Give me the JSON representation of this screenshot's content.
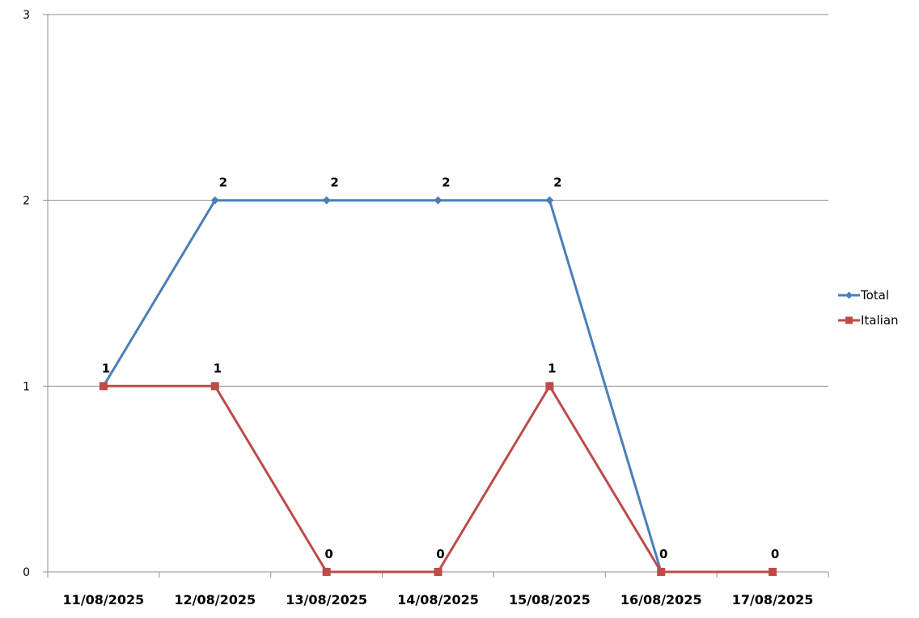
{
  "chart_data": {
    "type": "line",
    "categories": [
      "11/08/2025",
      "12/08/2025",
      "13/08/2025",
      "14/08/2025",
      "15/08/2025",
      "16/08/2025",
      "17/08/2025"
    ],
    "series": [
      {
        "name": "Total",
        "color": "#4a7ebb",
        "marker": "diamond",
        "values": [
          1,
          2,
          2,
          2,
          2,
          0,
          null
        ],
        "labels": [
          null,
          "2",
          "2",
          "2",
          "2",
          null,
          null
        ]
      },
      {
        "name": "Italian",
        "color": "#be4b48",
        "marker": "square",
        "values": [
          1,
          1,
          0,
          0,
          1,
          0,
          0
        ],
        "labels": [
          "1",
          "1",
          "0",
          "0",
          "1",
          "0",
          "0"
        ]
      }
    ],
    "ylim": [
      0,
      3
    ],
    "yticks": [
      "0",
      "1",
      "2",
      "3"
    ],
    "grid": true,
    "legend": "right"
  }
}
